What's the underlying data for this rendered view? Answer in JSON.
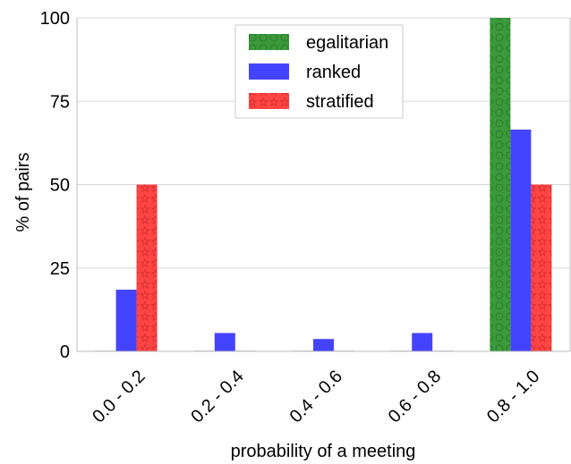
{
  "chart_data": {
    "type": "bar",
    "xlabel": "probability of a meeting",
    "ylabel": "% of pairs",
    "ylim": [
      0,
      100
    ],
    "yticks": [
      0,
      25,
      50,
      75,
      100
    ],
    "categories": [
      "0.0 - 0.2",
      "0.2 - 0.4",
      "0.4 - 0.6",
      "0.6 - 0.8",
      "0.8 - 1.0"
    ],
    "series": [
      {
        "name": "egalitarian",
        "color": "#3a9a3a",
        "pattern": "circles",
        "values": [
          0,
          0,
          0,
          0,
          100
        ]
      },
      {
        "name": "ranked",
        "color": "#4444ff",
        "pattern": "none",
        "values": [
          18.5,
          5.5,
          3.7,
          5.5,
          66.5
        ]
      },
      {
        "name": "stratified",
        "color": "#ff4444",
        "pattern": "stars",
        "values": [
          50,
          0,
          0,
          0,
          50
        ]
      }
    ],
    "grid": "horizontal",
    "legend_position": "top-center"
  }
}
